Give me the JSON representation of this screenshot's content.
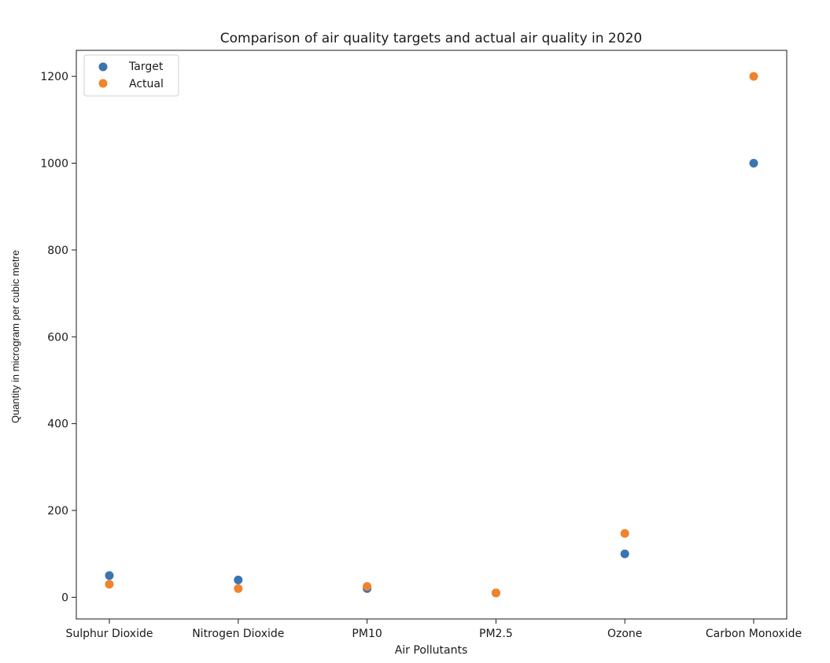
{
  "chart_data": {
    "type": "scatter",
    "title": "Comparison of air quality targets and actual air quality in 2020",
    "xlabel": "Air Pollutants",
    "ylabel": "Quantity in microgram per cubic metre",
    "categories": [
      "Sulphur Dioxide",
      "Nitrogen Dioxide",
      "PM10",
      "PM2.5",
      "Ozone",
      "Carbon Monoxide"
    ],
    "series": [
      {
        "name": "Target",
        "color": "#3a75b0",
        "values": [
          50,
          40,
          20,
          10,
          100,
          1000
        ]
      },
      {
        "name": "Actual",
        "color": "#f0832b",
        "values": [
          30,
          20,
          25,
          10,
          147,
          1200
        ]
      }
    ],
    "yticks": [
      0,
      200,
      400,
      600,
      800,
      1000,
      1200
    ],
    "ylim": [
      -50,
      1260
    ],
    "legend": "top-left",
    "grid": false
  }
}
